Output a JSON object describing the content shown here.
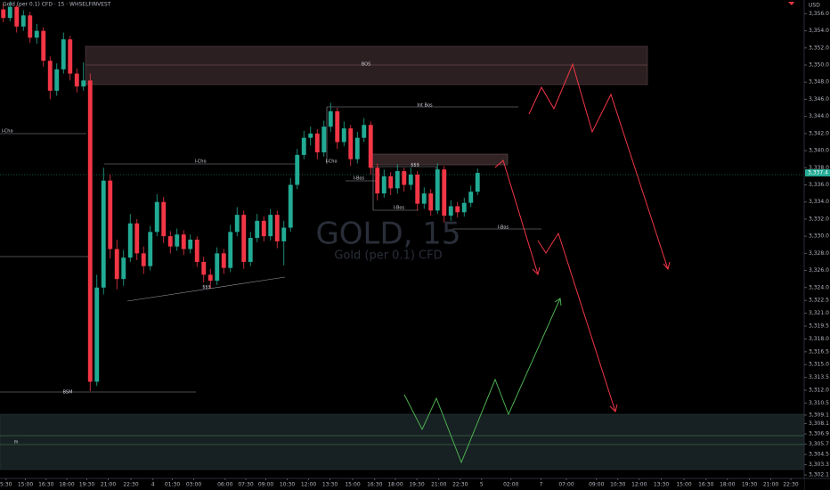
{
  "chart_data": {
    "type": "candlestick",
    "header": "Gold (per 0.1) CFD · 15 · WHSELFINVEST",
    "watermark_title": "GOLD, 15",
    "watermark_subtitle": "Gold (per 0.1) CFD",
    "currency": "USD",
    "up_color": "#22ab94",
    "down_color": "#f23645",
    "series": [
      {
        "name": "GOLD",
        "open": [
          3356.5,
          3355.5,
          3356.8,
          3354.5,
          3355.8,
          3353.2,
          3354.0,
          3350.5,
          3347.0,
          3349.5,
          3353.0,
          3349.0,
          3347.5,
          3348.2,
          3313.0,
          3324.0,
          3336.5,
          3328.5,
          3325.0,
          3327.5,
          3331.5,
          3328.0,
          3326.5,
          3330.5,
          3334.0,
          3330.0,
          3328.8,
          3330.2,
          3328.5,
          3329.6,
          3327.0,
          3325.5,
          3324.8,
          3328.0,
          3326.3,
          3330.5,
          3332.5,
          3327.0,
          3329.8,
          3331.8,
          3330.0,
          3332.5,
          3329.4,
          3331.0,
          3336.0,
          3339.5,
          3341.5,
          3342.0,
          3339.8,
          3342.8,
          3344.6,
          3341.0,
          3342.6,
          3339.0,
          3341.5,
          3343.0,
          3338.0,
          3335.0,
          3337.0,
          3335.6,
          3337.6,
          3336.0,
          3337.2,
          3333.8,
          3335.0,
          3333.0,
          3337.8,
          3332.4,
          3333.5,
          3332.8,
          3333.9,
          3335.2
        ],
        "high": [
          3357.2,
          3357.4,
          3357.0,
          3356.4,
          3356.2,
          3354.8,
          3354.4,
          3351.0,
          3350.2,
          3353.8,
          3353.4,
          3349.6,
          3350.3,
          3349.0,
          3325.5,
          3338.0,
          3337.2,
          3329.6,
          3328.4,
          3332.6,
          3332.0,
          3328.8,
          3331.2,
          3334.9,
          3334.6,
          3330.6,
          3330.9,
          3330.7,
          3330.2,
          3330.0,
          3327.6,
          3326.2,
          3328.7,
          3328.5,
          3331.3,
          3333.4,
          3333.0,
          3330.5,
          3332.6,
          3332.3,
          3333.2,
          3333.0,
          3331.8,
          3336.8,
          3340.2,
          3342.3,
          3342.8,
          3342.5,
          3343.5,
          3345.6,
          3345.0,
          3343.4,
          3343.0,
          3342.2,
          3343.8,
          3343.4,
          3338.5,
          3337.8,
          3337.5,
          3338.4,
          3338.0,
          3338.0,
          3337.6,
          3335.7,
          3335.5,
          3338.5,
          3338.2,
          3334.2,
          3334.0,
          3334.5,
          3335.9,
          3337.9
        ],
        "low": [
          3355.0,
          3355.1,
          3353.8,
          3354.0,
          3352.6,
          3352.5,
          3349.8,
          3346.0,
          3346.4,
          3349.0,
          3348.2,
          3346.8,
          3347.0,
          3311.9,
          3312.5,
          3323.2,
          3327.4,
          3323.8,
          3324.2,
          3327.0,
          3327.2,
          3325.6,
          3326.0,
          3330.0,
          3329.2,
          3328.0,
          3328.3,
          3327.8,
          3328.0,
          3326.4,
          3324.6,
          3323.9,
          3324.3,
          3325.6,
          3325.8,
          3330.0,
          3326.2,
          3326.5,
          3329.3,
          3329.4,
          3329.5,
          3328.6,
          3326.6,
          3330.5,
          3335.5,
          3339.0,
          3340.6,
          3339.0,
          3339.3,
          3342.2,
          3340.2,
          3340.5,
          3338.2,
          3338.5,
          3341.0,
          3337.2,
          3334.2,
          3334.5,
          3334.8,
          3335.0,
          3335.2,
          3335.4,
          3333.0,
          3333.2,
          3332.4,
          3332.6,
          3331.6,
          3331.8,
          3332.2,
          3332.3,
          3333.4,
          3334.8
        ],
        "close": [
          3355.5,
          3356.8,
          3354.5,
          3355.8,
          3353.2,
          3354.0,
          3350.5,
          3347.0,
          3349.5,
          3353.0,
          3349.0,
          3347.5,
          3348.2,
          3313.0,
          3324.0,
          3336.5,
          3328.5,
          3325.0,
          3327.5,
          3331.5,
          3328.0,
          3326.5,
          3330.5,
          3334.0,
          3330.0,
          3328.8,
          3330.2,
          3328.5,
          3329.6,
          3327.0,
          3325.5,
          3324.8,
          3328.0,
          3326.3,
          3330.5,
          3332.5,
          3327.0,
          3329.8,
          3331.8,
          3330.0,
          3332.5,
          3329.4,
          3331.0,
          3336.0,
          3339.5,
          3341.5,
          3342.0,
          3339.8,
          3342.8,
          3344.6,
          3341.0,
          3342.6,
          3339.0,
          3341.5,
          3343.0,
          3338.0,
          3335.0,
          3337.0,
          3335.6,
          3337.6,
          3336.0,
          3337.2,
          3333.8,
          3335.0,
          3333.0,
          3337.8,
          3332.4,
          3333.5,
          3332.8,
          3333.9,
          3335.2,
          3337.4
        ]
      }
    ],
    "last_price_label": "3,337.4",
    "xlim": [
      -0.5,
      119.9
    ],
    "xticks": [
      {
        "value": 0.4,
        "label": "5:30"
      },
      {
        "value": 3.3,
        "label": "15:00"
      },
      {
        "value": 6.4,
        "label": "16:30"
      },
      {
        "value": 9.5,
        "label": "18:00"
      },
      {
        "value": 12.5,
        "label": "19:30"
      },
      {
        "value": 15.7,
        "label": "21:00"
      },
      {
        "value": 19.1,
        "label": "22:30"
      },
      {
        "value": 22.4,
        "label": "4"
      },
      {
        "value": 25.3,
        "label": "01:30"
      },
      {
        "value": 28.5,
        "label": "03:00"
      },
      {
        "value": 33.2,
        "label": "06:00"
      },
      {
        "value": 36.3,
        "label": "07:30"
      },
      {
        "value": 39.3,
        "label": "09:00"
      },
      {
        "value": 42.5,
        "label": "10:30"
      },
      {
        "value": 45.7,
        "label": "12:00"
      },
      {
        "value": 48.9,
        "label": "13:30"
      },
      {
        "value": 52.3,
        "label": "15:00"
      },
      {
        "value": 55.6,
        "label": "16:30"
      },
      {
        "value": 58.7,
        "label": "18:00"
      },
      {
        "value": 61.9,
        "label": "19:30"
      },
      {
        "value": 65.2,
        "label": "21:00"
      },
      {
        "value": 68.4,
        "label": "22:30"
      },
      {
        "value": 71.6,
        "label": "5"
      },
      {
        "value": 76,
        "label": "02:00"
      },
      {
        "value": 80.5,
        "label": "7"
      },
      {
        "value": 84.3,
        "label": "07:00"
      },
      {
        "value": 88.8,
        "label": "09:00"
      },
      {
        "value": 92,
        "label": "10:30"
      },
      {
        "value": 95.2,
        "label": "12:00"
      },
      {
        "value": 98.5,
        "label": "13:30"
      },
      {
        "value": 101.9,
        "label": "15:00"
      },
      {
        "value": 105.2,
        "label": "16:30"
      },
      {
        "value": 108.4,
        "label": "18:00"
      },
      {
        "value": 111.7,
        "label": "19:30"
      },
      {
        "value": 114.9,
        "label": "21:00"
      },
      {
        "value": 117.9,
        "label": "22:30"
      }
    ],
    "ylim": [
      3301.7,
      3357.6
    ],
    "yticks": [
      {
        "value": 3356.0,
        "label": "3,356.0"
      },
      {
        "value": 3354.0,
        "label": "3,354.0"
      },
      {
        "value": 3352.0,
        "label": "3,352.0"
      },
      {
        "value": 3350.0,
        "label": "3,350.0"
      },
      {
        "value": 3348.0,
        "label": "3,348.0"
      },
      {
        "value": 3346.0,
        "label": "3,346.0"
      },
      {
        "value": 3344.0,
        "label": "3,344.0"
      },
      {
        "value": 3342.0,
        "label": "3,342.0"
      },
      {
        "value": 3340.0,
        "label": "3,340.0"
      },
      {
        "value": 3338.0,
        "label": "3,338.0"
      },
      {
        "value": 3336.0,
        "label": "3,336.0"
      },
      {
        "value": 3334.0,
        "label": "3,334.0"
      },
      {
        "value": 3332.0,
        "label": "3,332.0"
      },
      {
        "value": 3330.0,
        "label": "3,330.0"
      },
      {
        "value": 3328.0,
        "label": "3,328.0"
      },
      {
        "value": 3326.0,
        "label": "3,326.0"
      },
      {
        "value": 3324.0,
        "label": "3,324.0"
      },
      {
        "value": 3322.5,
        "label": "3,322.5"
      },
      {
        "value": 3321.0,
        "label": "3,321.0"
      },
      {
        "value": 3319.5,
        "label": "3,319.5"
      },
      {
        "value": 3318.0,
        "label": "3,318.0"
      },
      {
        "value": 3316.5,
        "label": "3,316.5"
      },
      {
        "value": 3315.0,
        "label": "3,315.0"
      },
      {
        "value": 3313.5,
        "label": "3,313.5"
      },
      {
        "value": 3312.0,
        "label": "3,312.0"
      },
      {
        "value": 3310.5,
        "label": "3,310.5"
      },
      {
        "value": 3309.1,
        "label": "3,309.1"
      },
      {
        "value": 3308.1,
        "label": "3,308.1"
      },
      {
        "value": 3306.9,
        "label": "3,306.9"
      },
      {
        "value": 3305.7,
        "label": "3,305.7"
      },
      {
        "value": 3304.5,
        "label": "3,304.5"
      },
      {
        "value": 3303.3,
        "label": "3,303.3"
      },
      {
        "value": 3302.1,
        "label": "3,302.1"
      }
    ],
    "annotations": [
      "I-Cho",
      "I-Cho",
      "I-Cho",
      "I-Bos",
      "I-Bos",
      "I-Bos",
      "Int Bos",
      "$$$",
      "$$$",
      "BSM",
      "BOS",
      "m"
    ]
  }
}
